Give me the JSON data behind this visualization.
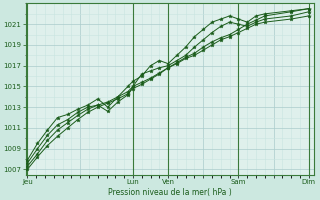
{
  "bg_color": "#cce8e0",
  "plot_bg_color": "#dff0ec",
  "grid_major_color": "#aacccc",
  "grid_minor_color": "#c8e4e0",
  "line_color": "#1a5c1a",
  "marker_color": "#1a5c1a",
  "spine_color": "#3a7a3a",
  "tick_color": "#1a5c1a",
  "ylim": [
    1006.5,
    1023.0
  ],
  "yticks": [
    1007,
    1009,
    1011,
    1013,
    1015,
    1017,
    1019,
    1021
  ],
  "xlabel": "Pression niveau de la mer( hPa )",
  "xtick_labels": [
    "Jeu",
    "",
    "Lun",
    "Ven",
    "",
    "Sam",
    "",
    "Dim"
  ],
  "xtick_positions": [
    0,
    1.5,
    3.0,
    4.0,
    5.0,
    6.0,
    7.0,
    8.0
  ],
  "vline_positions": [
    0,
    3.0,
    4.0,
    6.0,
    8.0
  ],
  "series": [
    [
      1007.0,
      1008.2,
      1009.3,
      1010.2,
      1011.0,
      1011.8,
      1012.5,
      1013.0,
      1013.4,
      1013.8,
      1014.3,
      1014.8,
      1015.2,
      1015.7,
      1016.2,
      1016.8,
      1017.3,
      1017.8,
      1018.2,
      1018.8,
      1019.3,
      1019.7,
      1020.0,
      1020.5,
      1021.0,
      1021.4,
      1021.8,
      1022.2,
      1022.5
    ],
    [
      1007.3,
      1008.5,
      1009.8,
      1010.8,
      1011.5,
      1012.2,
      1012.8,
      1013.2,
      1013.5,
      1014.0,
      1014.5,
      1015.0,
      1015.4,
      1015.8,
      1016.3,
      1016.8,
      1017.2,
      1017.7,
      1018.0,
      1018.5,
      1019.0,
      1019.5,
      1019.8,
      1020.2,
      1020.6,
      1021.0,
      1021.2,
      1021.5,
      1021.8
    ],
    [
      1007.6,
      1009.0,
      1010.3,
      1011.3,
      1011.8,
      1012.5,
      1013.0,
      1013.2,
      1012.6,
      1013.5,
      1014.2,
      1015.0,
      1016.2,
      1016.5,
      1016.8,
      1017.0,
      1017.5,
      1018.0,
      1018.8,
      1019.5,
      1020.2,
      1020.8,
      1021.2,
      1021.0,
      1020.8,
      1021.2,
      1021.5,
      1021.8,
      1022.2
    ],
    [
      1007.9,
      1009.5,
      1010.8,
      1012.0,
      1012.3,
      1012.8,
      1013.2,
      1013.8,
      1013.0,
      1014.0,
      1015.0,
      1015.5,
      1016.0,
      1017.0,
      1017.5,
      1017.2,
      1018.0,
      1018.8,
      1019.8,
      1020.5,
      1021.2,
      1021.5,
      1021.8,
      1021.5,
      1021.2,
      1021.8,
      1022.0,
      1022.3,
      1022.5
    ]
  ],
  "x_vals": [
    0.0,
    0.286,
    0.571,
    0.857,
    1.143,
    1.429,
    1.714,
    2.0,
    2.286,
    2.571,
    2.857,
    3.0,
    3.25,
    3.5,
    3.75,
    4.0,
    4.25,
    4.5,
    4.75,
    5.0,
    5.25,
    5.5,
    5.75,
    6.0,
    6.25,
    6.5,
    6.75,
    7.5,
    8.0
  ]
}
